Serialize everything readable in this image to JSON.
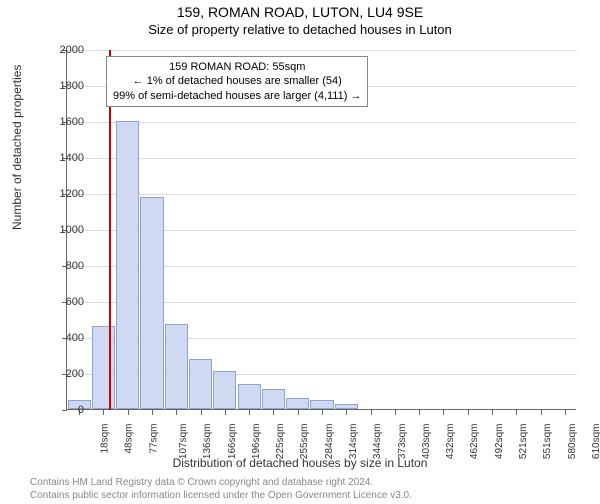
{
  "title": "159, ROMAN ROAD, LUTON, LU4 9SE",
  "subtitle": "Size of property relative to detached houses in Luton",
  "ylabel": "Number of detached properties",
  "xlabel": "Distribution of detached houses by size in Luton",
  "chart": {
    "type": "histogram",
    "ylim": [
      0,
      2000
    ],
    "ytick_step": 200,
    "bar_fill": "#cfdaf2",
    "bar_stroke": "#8ea4d2",
    "grid_color": "#dddddd",
    "axis_color": "#666666",
    "background_color": "#ffffff",
    "ref_line_color": "#d00000",
    "ref_value_sqm": 55,
    "x_categories": [
      "18sqm",
      "48sqm",
      "77sqm",
      "107sqm",
      "136sqm",
      "166sqm",
      "196sqm",
      "225sqm",
      "255sqm",
      "284sqm",
      "314sqm",
      "344sqm",
      "373sqm",
      "403sqm",
      "432sqm",
      "462sqm",
      "492sqm",
      "521sqm",
      "551sqm",
      "580sqm",
      "610sqm"
    ],
    "x_numeric": [
      18,
      48,
      77,
      107,
      136,
      166,
      196,
      225,
      255,
      284,
      314,
      344,
      373,
      403,
      432,
      462,
      492,
      521,
      551,
      580,
      610
    ],
    "values": [
      50,
      460,
      1600,
      1180,
      470,
      280,
      210,
      140,
      110,
      60,
      50,
      30,
      0,
      0,
      0,
      0,
      0,
      0,
      0,
      0,
      0
    ],
    "bar_width_ratio": 0.95,
    "label_fontsize": 11,
    "tick_fontsize": 10
  },
  "annotation": {
    "line1": "159 ROMAN ROAD: 55sqm",
    "line2": "← 1% of detached houses are smaller (54)",
    "line3": "99% of semi-detached houses are larger (4,111) →"
  },
  "footnote": {
    "line1": "Contains HM Land Registry data © Crown copyright and database right 2024.",
    "line2": "Contains public sector information licensed under the Open Government Licence v3.0."
  }
}
